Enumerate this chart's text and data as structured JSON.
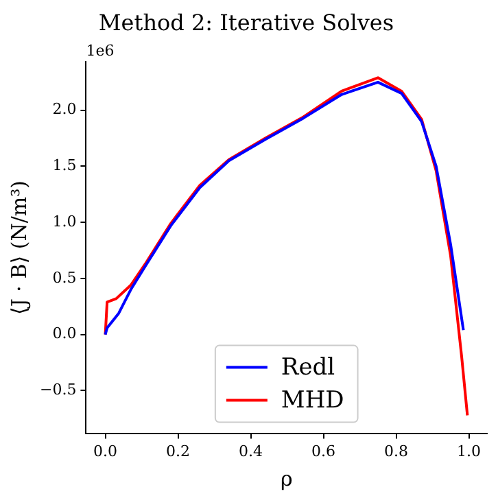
{
  "chart_data": {
    "type": "line",
    "title": "Method 2: Iterative Solves",
    "xlabel": "ρ",
    "ylabel": "⟨J · B⟩ (N/m³)",
    "annotations": [
      "1e6"
    ],
    "xlim": [
      -0.053,
      1.05
    ],
    "xticks": [
      {
        "value": 0,
        "label": "0.0"
      },
      {
        "value": 0.2,
        "label": "0.2"
      },
      {
        "value": 0.4,
        "label": "0.4"
      },
      {
        "value": 0.6,
        "label": "0.6"
      },
      {
        "value": 0.8,
        "label": "0.8"
      },
      {
        "value": 1,
        "label": "1.0"
      }
    ],
    "ylim": [
      -0.88,
      2.43
    ],
    "yticks": [
      {
        "value": -0.5,
        "label": "−0.5"
      },
      {
        "value": 0,
        "label": "0.0"
      },
      {
        "value": 0.5,
        "label": "0.5"
      },
      {
        "value": 1,
        "label": "1.0"
      },
      {
        "value": 1.5,
        "label": "1.5"
      },
      {
        "value": 2,
        "label": "2.0"
      }
    ],
    "grid": false,
    "legend": "bottom",
    "marker": "none",
    "line_style": "solid",
    "series": [
      {
        "name": "Redl",
        "color": "#0000ff",
        "x": [
          0,
          0.005,
          0.037,
          0.07,
          0.11,
          0.18,
          0.26,
          0.34,
          0.44,
          0.545,
          0.65,
          0.75,
          0.815,
          0.87,
          0.91,
          0.95,
          0.985
        ],
        "values": [
          0,
          0.06,
          0.19,
          0.4,
          0.61,
          0.97,
          1.31,
          1.55,
          1.74,
          1.93,
          2.14,
          2.25,
          2.15,
          1.9,
          1.5,
          0.8,
          0.04
        ]
      },
      {
        "name": "MHD",
        "color": "#ff0000",
        "x": [
          0,
          0.005,
          0.03,
          0.07,
          0.11,
          0.18,
          0.26,
          0.34,
          0.44,
          0.545,
          0.65,
          0.75,
          0.815,
          0.87,
          0.91,
          0.95,
          0.98,
          0.996
        ],
        "values": [
          0,
          0.29,
          0.32,
          0.44,
          0.63,
          0.99,
          1.33,
          1.56,
          1.75,
          1.94,
          2.17,
          2.29,
          2.17,
          1.92,
          1.46,
          0.7,
          -0.19,
          -0.72
        ]
      }
    ]
  }
}
